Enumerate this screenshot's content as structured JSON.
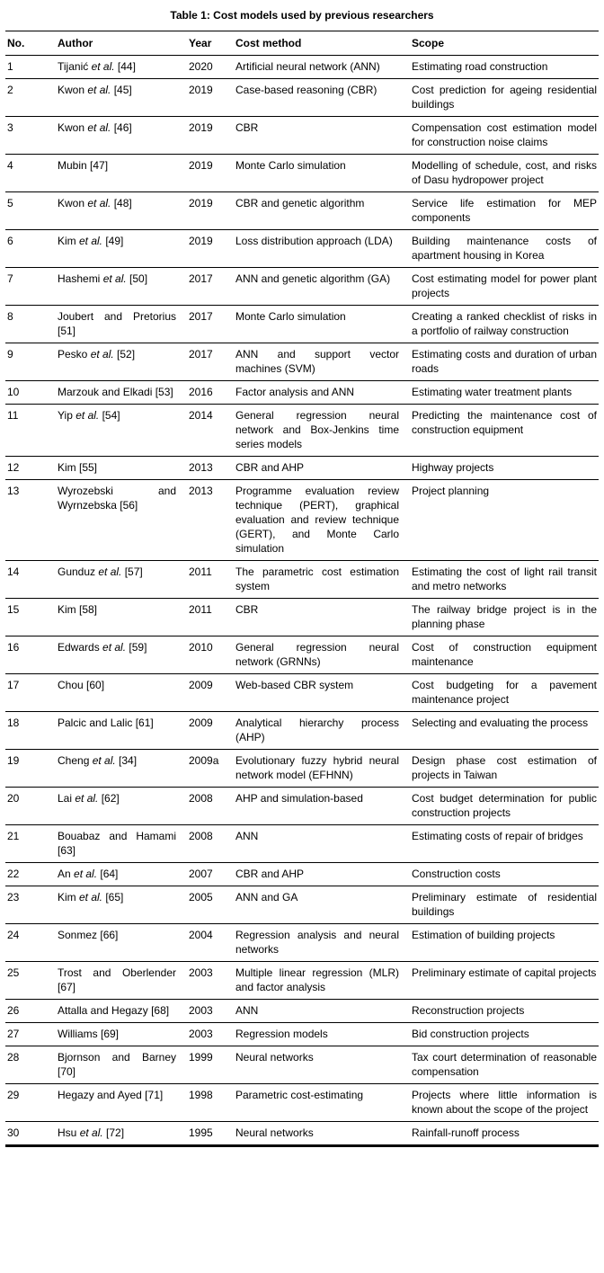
{
  "title": "Table 1: Cost models used by previous researchers",
  "table": {
    "headers": {
      "no": "No.",
      "author": "Author",
      "year": "Year",
      "method": "Cost method",
      "scope": "Scope"
    },
    "rows": [
      {
        "no": "1",
        "author": "Tijanić et al. [44]",
        "year": "2020",
        "method": "Artificial neural network (ANN)",
        "scope": "Estimating road construction"
      },
      {
        "no": "2",
        "author": "Kwon et al. [45]",
        "year": "2019",
        "method": "Case-based reasoning (CBR)",
        "scope": "Cost prediction for ageing residential buildings"
      },
      {
        "no": "3",
        "author": "Kwon et al. [46]",
        "year": "2019",
        "method": "CBR",
        "scope": "Compensation cost estimation model for construction noise claims"
      },
      {
        "no": "4",
        "author": "Mubin [47]",
        "year": "2019",
        "method": "Monte Carlo simulation",
        "scope": "Modelling of schedule, cost, and risks of Dasu hydropower project"
      },
      {
        "no": "5",
        "author": "Kwon et al. [48]",
        "year": "2019",
        "method": "CBR and genetic algorithm",
        "scope": "Service life estimation for MEP components"
      },
      {
        "no": "6",
        "author": "Kim et al. [49]",
        "year": "2019",
        "method": "Loss distribution approach (LDA)",
        "scope": "Building maintenance costs of apartment housing in Korea"
      },
      {
        "no": "7",
        "author": "Hashemi et al. [50]",
        "year": "2017",
        "method": "ANN and genetic algorithm (GA)",
        "scope": "Cost estimating model for power plant projects"
      },
      {
        "no": "8",
        "author": "Joubert and Pretorius [51]",
        "year": "2017",
        "method": "Monte Carlo simulation",
        "scope": "Creating a ranked checklist of risks in a portfolio of railway construction"
      },
      {
        "no": "9",
        "author": "Pesko et al. [52]",
        "year": "2017",
        "method": "ANN and support vector machines (SVM)",
        "scope": "Estimating costs and duration of urban roads"
      },
      {
        "no": "10",
        "author": "Marzouk and Elkadi [53]",
        "year": "2016",
        "method": "Factor analysis and ANN",
        "scope": "Estimating water treatment plants"
      },
      {
        "no": "11",
        "author": "Yip et al. [54]",
        "year": "2014",
        "method": "General regression neural network and Box-Jenkins time series models",
        "scope": "Predicting the maintenance cost of construction equipment"
      },
      {
        "no": "12",
        "author": "Kim [55]",
        "year": "2013",
        "method": "CBR and AHP",
        "scope": "Highway projects"
      },
      {
        "no": "13",
        "author": "Wyrozebski and Wyrnzebska [56]",
        "year": "2013",
        "method": "Programme evaluation review technique (PERT), graphical evaluation and review technique (GERT), and Monte Carlo simulation",
        "scope": "Project planning"
      },
      {
        "no": "14",
        "author": "Gunduz et al. [57]",
        "year": "2011",
        "method": "The parametric cost estimation system",
        "scope": "Estimating the cost of light rail transit and metro networks"
      },
      {
        "no": "15",
        "author": "Kim [58]",
        "year": "2011",
        "method": "CBR",
        "scope": "The railway bridge project is in the planning phase"
      },
      {
        "no": "16",
        "author": "Edwards et al. [59]",
        "year": "2010",
        "method": "General regression neural network (GRNNs)",
        "scope": "Cost of construction equipment maintenance"
      },
      {
        "no": "17",
        "author": "Chou [60]",
        "year": "2009",
        "method": "Web-based CBR system",
        "scope": "Cost budgeting for a pavement maintenance project"
      },
      {
        "no": "18",
        "author": "Palcic and Lalic [61]",
        "year": "2009",
        "method": "Analytical hierarchy process (AHP)",
        "scope": "Selecting and evaluating the process"
      },
      {
        "no": "19",
        "author": "Cheng et al. [34]",
        "year": "2009a",
        "method": "Evolutionary fuzzy hybrid neural network model (EFHNN)",
        "scope": "Design phase cost estimation of projects in Taiwan"
      },
      {
        "no": "20",
        "author": "Lai et al. [62]",
        "year": "2008",
        "method": "AHP and simulation-based",
        "scope": "Cost budget determination for public construction projects"
      },
      {
        "no": "21",
        "author": "Bouabaz and Hamami [63]",
        "year": "2008",
        "method": "ANN",
        "scope": "Estimating costs of repair of bridges"
      },
      {
        "no": "22",
        "author": "An et al. [64]",
        "year": "2007",
        "method": "CBR and AHP",
        "scope": "Construction costs"
      },
      {
        "no": "23",
        "author": "Kim et al. [65]",
        "year": "2005",
        "method": "ANN and GA",
        "scope": "Preliminary estimate of residential buildings"
      },
      {
        "no": "24",
        "author": "Sonmez [66]",
        "year": "2004",
        "method": "Regression analysis and neural networks",
        "scope": "Estimation of building projects"
      },
      {
        "no": "25",
        "author": "Trost and Oberlender [67]",
        "year": "2003",
        "method": "Multiple linear regression (MLR) and factor analysis",
        "scope": "Preliminary estimate of capital projects"
      },
      {
        "no": "26",
        "author": "Attalla and Hegazy [68]",
        "year": "2003",
        "method": "ANN",
        "scope": "Reconstruction projects"
      },
      {
        "no": "27",
        "author": "Williams [69]",
        "year": "2003",
        "method": "Regression models",
        "scope": "Bid construction projects"
      },
      {
        "no": "28",
        "author": "Bjornson and Barney [70]",
        "year": "1999",
        "method": "Neural networks",
        "scope": "Tax court determination of reasonable compensation"
      },
      {
        "no": "29",
        "author": "Hegazy and Ayed [71]",
        "year": "1998",
        "method": "Parametric cost-estimating",
        "scope": "Projects where little information is known about the scope of the project"
      },
      {
        "no": "30",
        "author": "Hsu et al. [72]",
        "year": "1995",
        "method": "Neural networks",
        "scope": "Rainfall-runoff process"
      }
    ]
  }
}
